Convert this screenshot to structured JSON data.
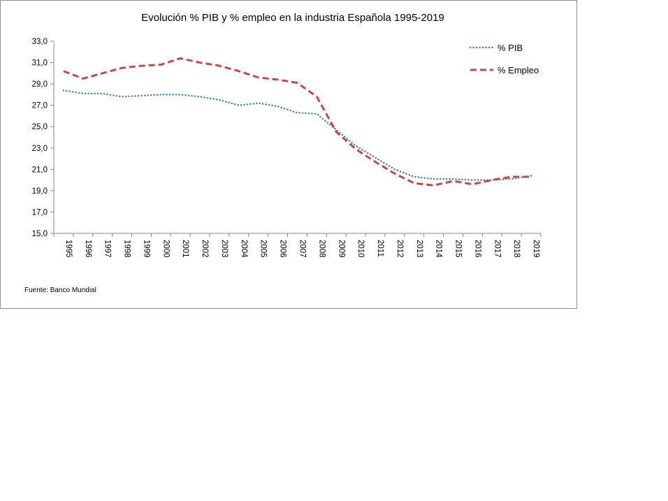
{
  "chart_data": {
    "type": "line",
    "title": "Evolución % PIB y % empleo  en la industria Española  1995-2019",
    "xlabel": "",
    "ylabel": "",
    "x": [
      "1995",
      "1996",
      "1997",
      "1998",
      "1999",
      "2000",
      "2001",
      "2002",
      "2003",
      "2004",
      "2005",
      "2006",
      "2007",
      "2008",
      "2009",
      "2010",
      "2011",
      "2012",
      "2013",
      "2014",
      "2015",
      "2016",
      "2017",
      "2018",
      "2019"
    ],
    "ylim": [
      15.0,
      33.0
    ],
    "yticks": [
      "15,0",
      "17,0",
      "19,0",
      "21,0",
      "23,0",
      "25,0",
      "27,0",
      "29,0",
      "31,0",
      "33,0"
    ],
    "grid": false,
    "legend_position": "top-right",
    "series": [
      {
        "name": "% PIB",
        "color": "#4a7ebb",
        "style": "dotted",
        "values": [
          28.4,
          28.1,
          28.1,
          27.8,
          27.9,
          28.0,
          28.0,
          27.8,
          27.5,
          27.0,
          27.2,
          26.9,
          26.3,
          26.2,
          24.7,
          23.2,
          22.1,
          21.0,
          20.3,
          20.1,
          20.1,
          20.0,
          20.0,
          20.1,
          20.4
        ]
      },
      {
        "name": "% Empleo",
        "color": "#be4b48",
        "style": "dashed",
        "values": [
          30.2,
          29.5,
          30.0,
          30.5,
          30.7,
          30.8,
          31.4,
          31.0,
          30.7,
          30.2,
          29.6,
          29.4,
          29.1,
          27.8,
          24.5,
          22.9,
          21.7,
          20.6,
          19.7,
          19.5,
          19.9,
          19.6,
          20.0,
          20.3,
          20.3
        ]
      }
    ],
    "source": "Fuente: Banco Mundial"
  }
}
